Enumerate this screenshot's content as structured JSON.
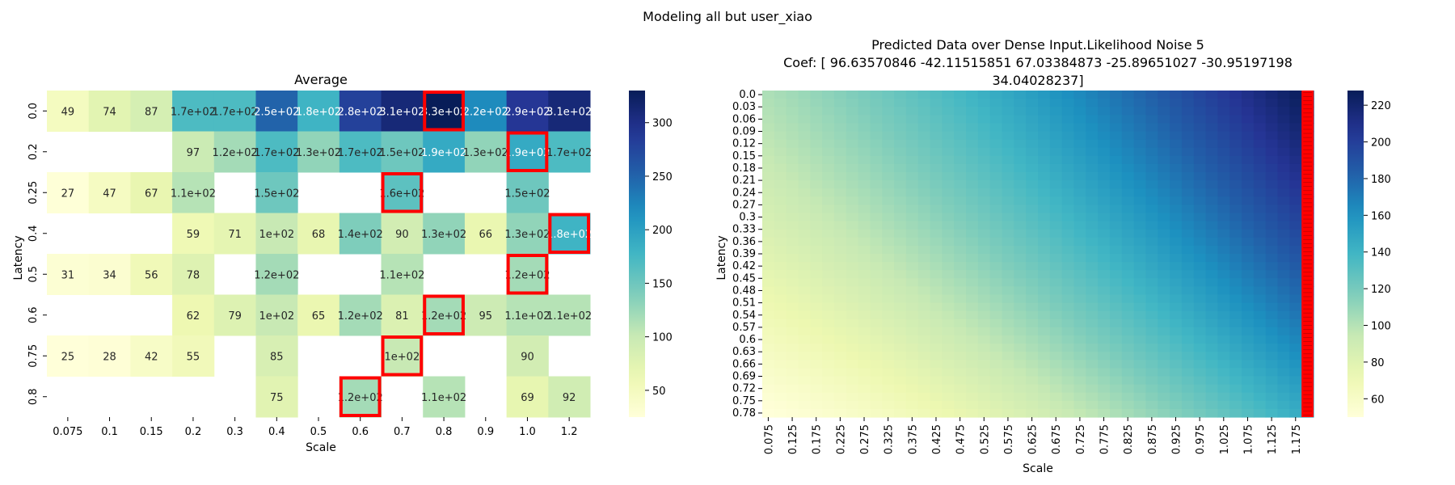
{
  "figure": {
    "suptitle": "Modeling all but user_xiao"
  },
  "chart_data": [
    {
      "type": "heatmap",
      "title": "Average",
      "xlabel": "Scale",
      "ylabel": "Latency",
      "x_categories": [
        "0.075",
        "0.1",
        "0.15",
        "0.2",
        "0.3",
        "0.4",
        "0.5",
        "0.6",
        "0.7",
        "0.8",
        "0.9",
        "1.0",
        "1.2"
      ],
      "y_categories": [
        "0.0",
        "0.2",
        "0.25",
        "0.4",
        "0.5",
        "0.6",
        "0.75",
        "0.8"
      ],
      "values": [
        [
          49,
          74,
          87,
          170,
          170,
          250,
          180,
          280,
          310,
          330,
          220,
          290,
          310
        ],
        [
          null,
          null,
          null,
          97,
          120,
          170,
          130,
          170,
          150,
          190,
          130,
          190,
          170
        ],
        [
          27,
          47,
          67,
          110,
          null,
          150,
          null,
          null,
          160,
          null,
          null,
          150,
          null
        ],
        [
          null,
          null,
          null,
          59,
          71,
          100,
          68,
          140,
          90,
          130,
          66,
          130,
          180
        ],
        [
          31,
          34,
          56,
          78,
          null,
          120,
          null,
          null,
          110,
          null,
          null,
          120,
          null
        ],
        [
          null,
          null,
          null,
          62,
          79,
          100,
          65,
          120,
          81,
          120,
          95,
          110,
          110
        ],
        [
          25,
          28,
          42,
          55,
          null,
          85,
          null,
          null,
          100,
          null,
          null,
          90,
          null
        ],
        [
          null,
          null,
          null,
          null,
          null,
          75,
          null,
          120,
          null,
          110,
          null,
          69,
          92
        ]
      ],
      "labels": [
        [
          "49",
          "74",
          "87",
          "1.7e+02",
          "1.7e+02",
          "2.5e+02",
          "1.8e+02",
          "2.8e+02",
          "3.1e+02",
          "3.3e+02",
          "2.2e+02",
          "2.9e+02",
          "3.1e+02"
        ],
        [
          "",
          "",
          "",
          "97",
          "1.2e+02",
          "1.7e+02",
          "1.3e+02",
          "1.7e+02",
          "1.5e+02",
          "1.9e+02",
          "1.3e+02",
          "1.9e+02",
          "1.7e+02"
        ],
        [
          "27",
          "47",
          "67",
          "1.1e+02",
          "",
          "1.5e+02",
          "",
          "",
          "1.6e+02",
          "",
          "",
          "1.5e+02",
          ""
        ],
        [
          "",
          "",
          "",
          "59",
          "71",
          "1e+02",
          "68",
          "1.4e+02",
          "90",
          "1.3e+02",
          "66",
          "1.3e+02",
          "1.8e+02"
        ],
        [
          "31",
          "34",
          "56",
          "78",
          "",
          "1.2e+02",
          "",
          "",
          "1.1e+02",
          "",
          "",
          "1.2e+02",
          ""
        ],
        [
          "",
          "",
          "",
          "62",
          "79",
          "1e+02",
          "65",
          "1.2e+02",
          "81",
          "1.2e+02",
          "95",
          "1.1e+02",
          "1.1e+02"
        ],
        [
          "25",
          "28",
          "42",
          "55",
          "",
          "85",
          "",
          "",
          "1e+02",
          "",
          "",
          "90",
          ""
        ],
        [
          "",
          "",
          "",
          "",
          "",
          "75",
          "",
          "1.2e+02",
          "",
          "1.1e+02",
          "",
          "69",
          "92"
        ]
      ],
      "highlighted_cells": [
        [
          0,
          9
        ],
        [
          1,
          11
        ],
        [
          2,
          8
        ],
        [
          3,
          12
        ],
        [
          4,
          11
        ],
        [
          5,
          9
        ],
        [
          6,
          8
        ],
        [
          7,
          7
        ]
      ],
      "highlight_color": "#ff0000",
      "colormap": "YlGnBu",
      "vmin": 25,
      "vmax": 330,
      "colorbar_ticks": [
        50,
        100,
        150,
        200,
        250,
        300
      ]
    },
    {
      "type": "heatmap",
      "title": "Predicted Data over Dense Input.Likelihood Noise 5",
      "subtitle_lines": [
        "Coef: [ 96.63570846 -42.11515851  67.03384873 -25.89651027 -30.95197198",
        "34.04028237]"
      ],
      "xlabel": "Scale",
      "ylabel": "Latency",
      "x_tick_labels": [
        "0.075",
        "0.125",
        "0.175",
        "0.225",
        "0.275",
        "0.325",
        "0.375",
        "0.425",
        "0.475",
        "0.525",
        "0.575",
        "0.625",
        "0.675",
        "0.725",
        "0.775",
        "0.825",
        "0.875",
        "0.925",
        "0.975",
        "1.025",
        "1.075",
        "1.125",
        "1.175"
      ],
      "y_tick_labels": [
        "0.0",
        "0.03",
        "0.06",
        "0.09",
        "0.12",
        "0.15",
        "0.18",
        "0.21",
        "0.24",
        "0.27",
        "0.3",
        "0.33",
        "0.36",
        "0.39",
        "0.42",
        "0.45",
        "0.48",
        "0.51",
        "0.54",
        "0.57",
        "0.6",
        "0.63",
        "0.66",
        "0.69",
        "0.72",
        "0.75",
        "0.78"
      ],
      "x_range": [
        0.075,
        1.2
      ],
      "y_range": [
        0.0,
        0.8
      ],
      "model_coefficients": [
        96.63570846,
        -42.11515851,
        67.03384873,
        -25.89651027,
        -30.95197198,
        34.04028237
      ],
      "highlighted_column_x": 1.2,
      "highlight_color": "#ff0000",
      "colormap": "YlGnBu",
      "vmin": 50,
      "vmax": 228,
      "colorbar_ticks": [
        60,
        80,
        100,
        120,
        140,
        160,
        180,
        200,
        220
      ]
    }
  ]
}
